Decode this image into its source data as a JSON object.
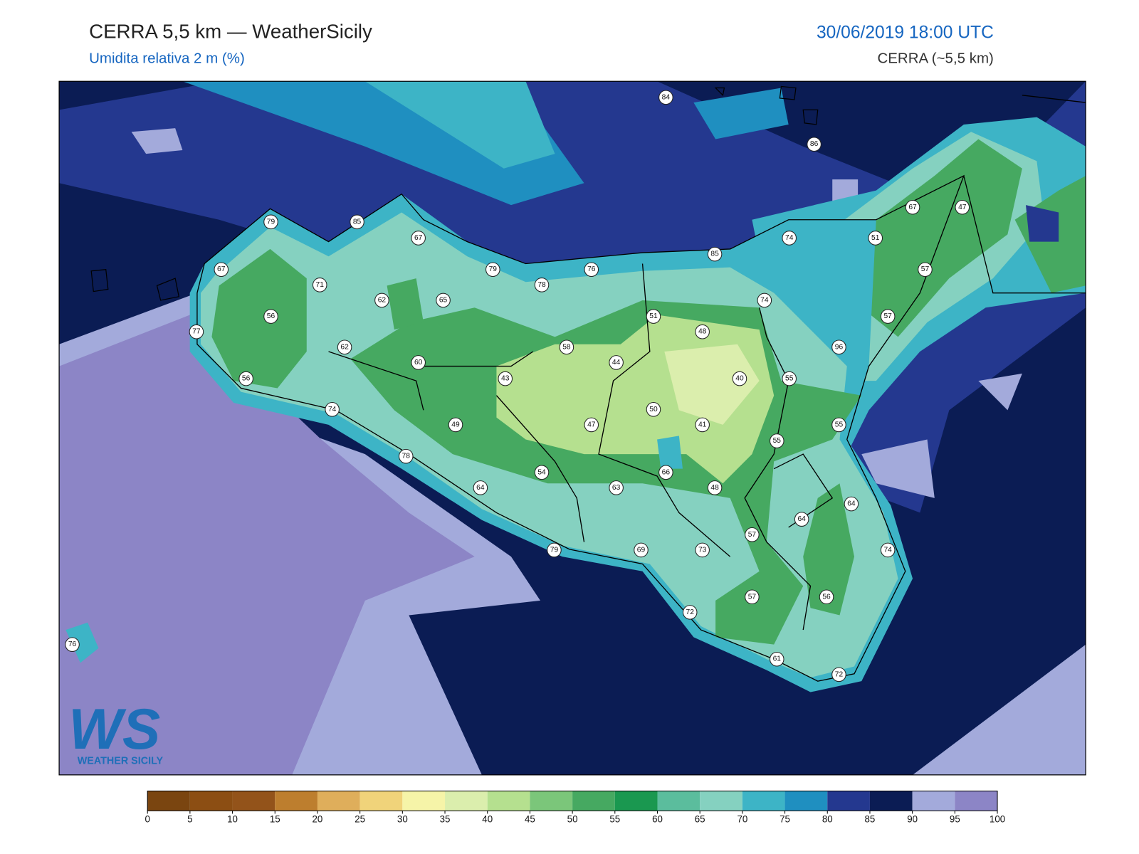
{
  "header": {
    "title": "CERRA 5,5 km — WeatherSicily",
    "subtitle": "Umidita relativa 2 m (%)",
    "datetime": "30/06/2019 18:00 UTC",
    "model": "CERRA (~5,5 km)"
  },
  "logo": {
    "letters": "WS",
    "name": "WEATHER SICILY"
  },
  "stations": {
    "values": [
      84,
      86,
      79,
      85,
      67,
      67,
      47,
      74,
      51,
      85,
      67,
      79,
      76,
      78,
      57,
      71,
      62,
      65,
      74,
      56,
      51,
      57,
      77,
      48,
      96,
      62,
      58,
      60,
      44,
      56,
      43,
      40,
      55,
      74,
      50,
      49,
      47,
      41,
      55,
      55,
      78,
      54,
      66,
      64,
      63,
      48,
      64,
      64,
      57,
      79,
      69,
      73,
      74,
      57,
      56,
      72,
      76,
      61,
      72
    ]
  },
  "colorbar": {
    "ticks": [
      0,
      5,
      10,
      15,
      20,
      25,
      30,
      35,
      40,
      45,
      50,
      55,
      60,
      65,
      70,
      75,
      80,
      85,
      90,
      95,
      100
    ],
    "colors": [
      "#7a4510",
      "#8c4e13",
      "#93531a",
      "#bd7e2e",
      "#dfae5b",
      "#f0d37a",
      "#f6f4a8",
      "#dbeead",
      "#b5e08f",
      "#7bc67a",
      "#46a961",
      "#1a9850",
      "#5bbd9d",
      "#85d1c0",
      "#3db4c6",
      "#1f8fc0",
      "#24388f",
      "#0b1c54",
      "#a3aadb",
      "#8c85c6"
    ]
  }
}
